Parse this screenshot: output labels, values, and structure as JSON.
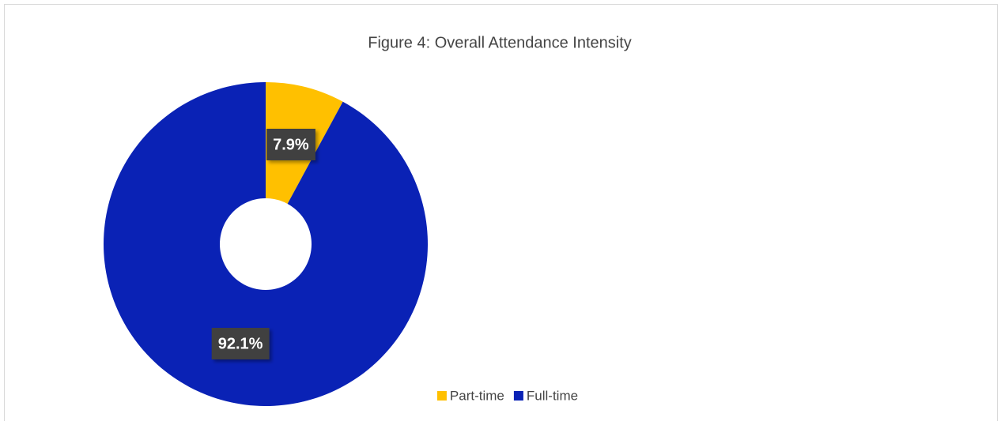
{
  "chart_data": {
    "type": "pie",
    "title": "Figure 4: Overall Attendance Intensity",
    "categories": [
      "Part-time",
      "Full-time"
    ],
    "series": [
      {
        "values": [
          7.9,
          92.1
        ],
        "value_labels": [
          "7.9%",
          "92.1%"
        ],
        "colors": [
          "#ffc000",
          "#0a22b5"
        ]
      }
    ],
    "donut": true,
    "legend": "bottom"
  }
}
